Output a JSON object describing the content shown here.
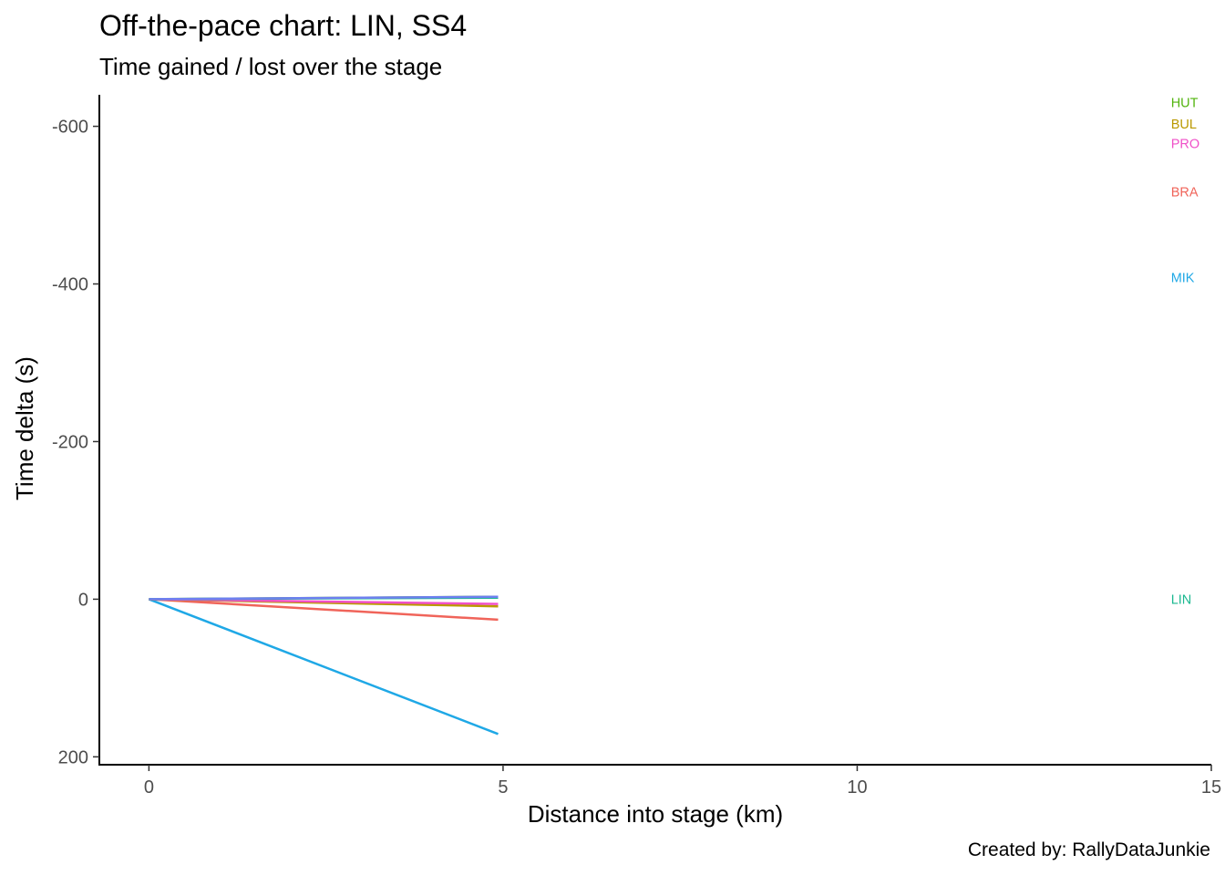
{
  "chart_data": {
    "type": "line",
    "title": "Off-the-pace chart: LIN, SS4",
    "subtitle": "Time gained / lost over the stage",
    "xlabel": "Distance into stage (km)",
    "ylabel": "Time delta (s)",
    "caption": "Created by: RallyDataJunkie",
    "xlim": [
      -0.7,
      15
    ],
    "ylim": [
      210,
      -640
    ],
    "y_reversed": true,
    "xticks": [
      0,
      5,
      10,
      15
    ],
    "yticks": [
      -600,
      -400,
      -200,
      0,
      200
    ],
    "grid": false,
    "series": [
      {
        "name": "MIK",
        "color": "#1FA8E6",
        "x": [
          0,
          4.93
        ],
        "y": [
          0,
          171
        ],
        "label_y": -408
      },
      {
        "name": "BRA",
        "color": "#F0645A",
        "x": [
          0,
          4.93
        ],
        "y": [
          0,
          26
        ],
        "label_y": -517
      },
      {
        "name": "BUL",
        "color": "#BA9900",
        "x": [
          0,
          4.93
        ],
        "y": [
          0,
          9
        ],
        "label_y": -603
      },
      {
        "name": "PRO",
        "color": "#F050C8",
        "x": [
          0,
          4.93
        ],
        "y": [
          0,
          6
        ],
        "label_y": -578
      },
      {
        "name": "HUT",
        "color": "#52B40E",
        "x": [
          0,
          4.93
        ],
        "y": [
          0,
          -3
        ],
        "label_y": -630
      },
      {
        "name": "LIN",
        "color": "#1BB890",
        "x": [
          0,
          4.93
        ],
        "y": [
          0,
          -2
        ],
        "label_y": 0
      },
      {
        "name": "",
        "color": "#6E7FF0",
        "x": [
          0,
          4.93
        ],
        "y": [
          0,
          -3
        ],
        "label_y": null
      }
    ],
    "label_x": 14.43
  }
}
